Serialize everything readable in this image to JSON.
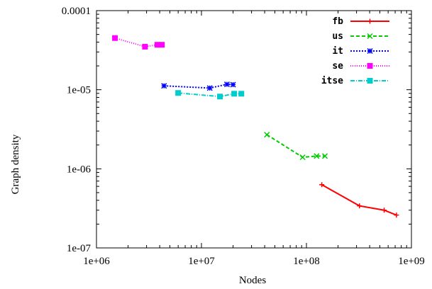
{
  "chart_data": {
    "type": "line",
    "xscale": "log",
    "yscale": "log",
    "xlim": [
      1000000,
      1000000000
    ],
    "ylim": [
      1e-07,
      0.0001
    ],
    "xlabel": "Nodes",
    "ylabel": "Graph density",
    "xticks": [
      {
        "value": 1000000,
        "label": "1e+06"
      },
      {
        "value": 10000000,
        "label": "1e+07"
      },
      {
        "value": 100000000,
        "label": "1e+08"
      },
      {
        "value": 1000000000,
        "label": "1e+09"
      }
    ],
    "yticks": [
      {
        "value": 1e-07,
        "label": "1e-07"
      },
      {
        "value": 1e-06,
        "label": "1e-06"
      },
      {
        "value": 1e-05,
        "label": "1e-05"
      },
      {
        "value": 0.0001,
        "label": "0.0001"
      }
    ],
    "legend_position": "top-right",
    "grid": false,
    "series": [
      {
        "name": "fb",
        "color": "#ff0000",
        "dash": "",
        "marker": "plus",
        "points": [
          [
            140000000,
            6.3e-07
          ],
          [
            320000000,
            3.4e-07
          ],
          [
            550000000,
            3e-07
          ],
          [
            720000000,
            2.6e-07
          ]
        ]
      },
      {
        "name": "us",
        "color": "#00cc00",
        "dash": "5,3",
        "marker": "cross",
        "points": [
          [
            42000000,
            2.7e-06
          ],
          [
            92000000,
            1.4e-06
          ],
          [
            125000000,
            1.45e-06
          ],
          [
            150000000,
            1.45e-06
          ]
        ]
      },
      {
        "name": "it",
        "color": "#0000ff",
        "dash": "2,2",
        "marker": "star",
        "points": [
          [
            4400000,
            1.12e-05
          ],
          [
            12000000,
            1.05e-05
          ],
          [
            17500000,
            1.17e-05
          ],
          [
            20000000,
            1.16e-05
          ]
        ]
      },
      {
        "name": "se",
        "color": "#ff00ff",
        "dash": "1,2",
        "marker": "box",
        "points": [
          [
            1500000,
            4.5e-05
          ],
          [
            2900000,
            3.5e-05
          ],
          [
            3800000,
            3.7e-05
          ],
          [
            4200000,
            3.7e-05
          ]
        ]
      },
      {
        "name": "itse",
        "color": "#00cccc",
        "dash": "6,2,1,2",
        "marker": "box",
        "points": [
          [
            6000000,
            9.1e-06
          ],
          [
            15000000,
            8.2e-06
          ],
          [
            20500000,
            8.9e-06
          ],
          [
            24000000,
            8.9e-06
          ]
        ]
      }
    ]
  }
}
